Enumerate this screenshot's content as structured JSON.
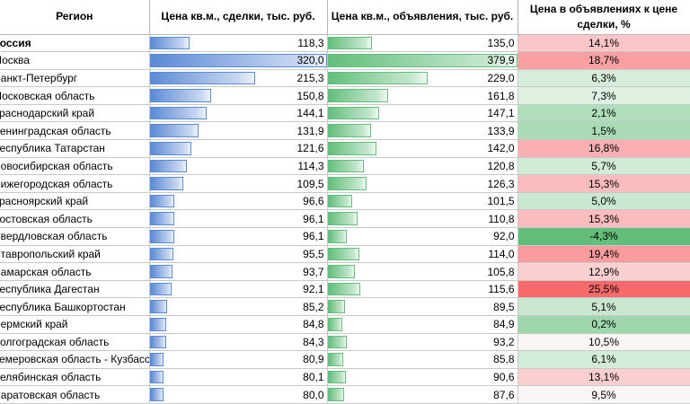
{
  "headers": {
    "region": "Регион",
    "deal_price": "Цена кв.м., сделки, тыс. руб.",
    "ad_price": "Цена кв.м., объявления, тыс. руб.",
    "markup": "Цена в объявлениях к цене сделки, %"
  },
  "bar_scale_max": {
    "deal": 320.0,
    "ad": 379.9
  },
  "colors": {
    "deal_bar": "#5b8ad6",
    "ad_bar": "#63be7b",
    "red_strong": "#f8696b",
    "red_light": "#fcdfe1",
    "green_strong": "#63be7b",
    "green_light": "#e4f3e7"
  },
  "rows": [
    {
      "region": "Россия",
      "deal": "118,3",
      "deal_num": 118.3,
      "ad": "135,0",
      "ad_num": 135.0,
      "pct": "14,1%",
      "pct_num": 14.1,
      "bold": true
    },
    {
      "region": "Москва",
      "deal": "320,0",
      "deal_num": 320.0,
      "ad": "379,9",
      "ad_num": 379.9,
      "pct": "18,7%",
      "pct_num": 18.7
    },
    {
      "region": "Санкт-Петербург",
      "deal": "215,3",
      "deal_num": 215.3,
      "ad": "229,0",
      "ad_num": 229.0,
      "pct": "6,3%",
      "pct_num": 6.3
    },
    {
      "region": "Московская область",
      "deal": "150,8",
      "deal_num": 150.8,
      "ad": "161,8",
      "ad_num": 161.8,
      "pct": "7,3%",
      "pct_num": 7.3
    },
    {
      "region": "Краснодарский край",
      "deal": "144,1",
      "deal_num": 144.1,
      "ad": "147,1",
      "ad_num": 147.1,
      "pct": "2,1%",
      "pct_num": 2.1
    },
    {
      "region": "Ленинградская область",
      "deal": "131,9",
      "deal_num": 131.9,
      "ad": "133,9",
      "ad_num": 133.9,
      "pct": "1,5%",
      "pct_num": 1.5
    },
    {
      "region": "Республика Татарстан",
      "deal": "121,6",
      "deal_num": 121.6,
      "ad": "142,0",
      "ad_num": 142.0,
      "pct": "16,8%",
      "pct_num": 16.8
    },
    {
      "region": "Новосибирская область",
      "deal": "114,3",
      "deal_num": 114.3,
      "ad": "120,8",
      "ad_num": 120.8,
      "pct": "5,7%",
      "pct_num": 5.7
    },
    {
      "region": "Нижегородская область",
      "deal": "109,5",
      "deal_num": 109.5,
      "ad": "126,3",
      "ad_num": 126.3,
      "pct": "15,3%",
      "pct_num": 15.3
    },
    {
      "region": "Красноярский край",
      "deal": "96,6",
      "deal_num": 96.6,
      "ad": "101,5",
      "ad_num": 101.5,
      "pct": "5,0%",
      "pct_num": 5.0
    },
    {
      "region": "Ростовская область",
      "deal": "96,1",
      "deal_num": 96.1,
      "ad": "110,8",
      "ad_num": 110.8,
      "pct": "15,3%",
      "pct_num": 15.3
    },
    {
      "region": "Свердловская область",
      "deal": "96,1",
      "deal_num": 96.1,
      "ad": "92,0",
      "ad_num": 92.0,
      "pct": "-4,3%",
      "pct_num": -4.3
    },
    {
      "region": "Ставропольский край",
      "deal": "95,5",
      "deal_num": 95.5,
      "ad": "114,0",
      "ad_num": 114.0,
      "pct": "19,4%",
      "pct_num": 19.4
    },
    {
      "region": "Самарская область",
      "deal": "93,7",
      "deal_num": 93.7,
      "ad": "105,8",
      "ad_num": 105.8,
      "pct": "12,9%",
      "pct_num": 12.9
    },
    {
      "region": "Республика Дагестан",
      "deal": "92,1",
      "deal_num": 92.1,
      "ad": "115,6",
      "ad_num": 115.6,
      "pct": "25,5%",
      "pct_num": 25.5
    },
    {
      "region": "Республика Башкортостан",
      "deal": "85,2",
      "deal_num": 85.2,
      "ad": "89,5",
      "ad_num": 89.5,
      "pct": "5,1%",
      "pct_num": 5.1
    },
    {
      "region": "Пермский край",
      "deal": "84,8",
      "deal_num": 84.8,
      "ad": "84,9",
      "ad_num": 84.9,
      "pct": "0,2%",
      "pct_num": 0.2
    },
    {
      "region": "Волгоградская область",
      "deal": "84,3",
      "deal_num": 84.3,
      "ad": "93,2",
      "ad_num": 93.2,
      "pct": "10,5%",
      "pct_num": 10.5
    },
    {
      "region": "Кемеровская область - Кузбасс",
      "deal": "80,9",
      "deal_num": 80.9,
      "ad": "85,8",
      "ad_num": 85.8,
      "pct": "6,1%",
      "pct_num": 6.1
    },
    {
      "region": "Челябинская область",
      "deal": "80,1",
      "deal_num": 80.1,
      "ad": "90,6",
      "ad_num": 90.6,
      "pct": "13,1%",
      "pct_num": 13.1
    },
    {
      "region": "Саратовская область",
      "deal": "80,0",
      "deal_num": 80.0,
      "ad": "87,6",
      "ad_num": 87.6,
      "pct": "9,5%",
      "pct_num": 9.5
    }
  ]
}
